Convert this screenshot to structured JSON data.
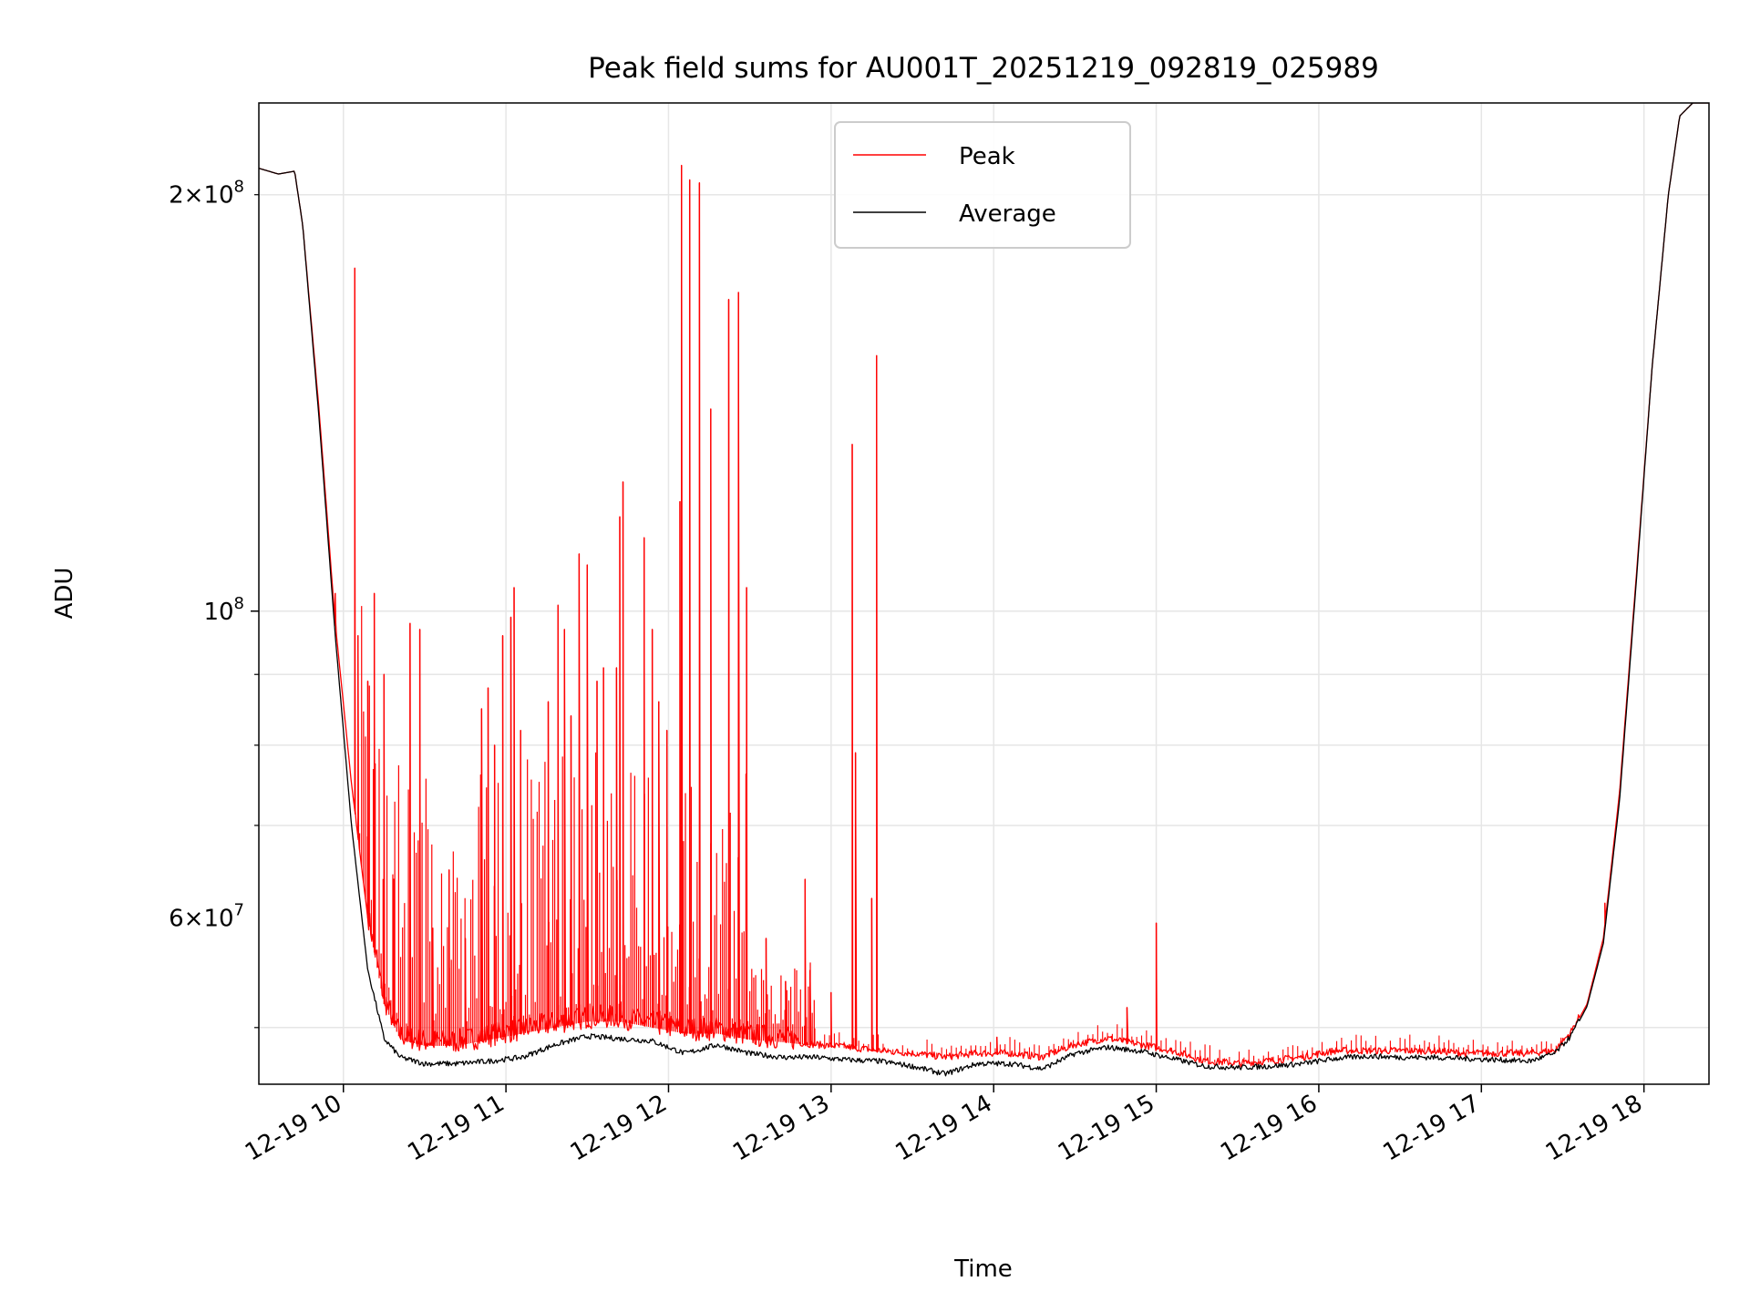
{
  "chart_data": {
    "type": "line",
    "title": "Peak field sums for AU001T_20251219_092819_025989",
    "xlabel": "Time",
    "ylabel": "ADU",
    "yscale": "log",
    "xlim_hours": [
      9.48,
      18.4
    ],
    "ylim": [
      45500000,
      233000000
    ],
    "grid": true,
    "legend_position": "upper-center",
    "x_ticks": [
      {
        "hour": 10,
        "label": "12-19 10"
      },
      {
        "hour": 11,
        "label": "12-19 11"
      },
      {
        "hour": 12,
        "label": "12-19 12"
      },
      {
        "hour": 13,
        "label": "12-19 13"
      },
      {
        "hour": 14,
        "label": "12-19 14"
      },
      {
        "hour": 15,
        "label": "12-19 15"
      },
      {
        "hour": 16,
        "label": "12-19 16"
      },
      {
        "hour": 17,
        "label": "12-19 17"
      },
      {
        "hour": 18,
        "label": "12-19 18"
      }
    ],
    "y_major_ticks": [
      {
        "value": 100000000,
        "base": "10",
        "exp": "8"
      }
    ],
    "y_labeled_minor_ticks": [
      {
        "value": 200000000,
        "mant": "2",
        "base": "10",
        "exp": "8"
      },
      {
        "value": 60000000,
        "mant": "6",
        "base": "10",
        "exp": "7"
      }
    ],
    "y_minor_ticks": [
      50000000,
      70000000,
      80000000,
      90000000,
      200000000
    ],
    "series": [
      {
        "name": "Peak",
        "color": "#ff0000",
        "baseline": {
          "hours": [
            9.48,
            9.6,
            9.7,
            9.75,
            9.85,
            9.95,
            10.05,
            10.15,
            10.25,
            10.35,
            10.5,
            10.7,
            10.9,
            11.1,
            11.3,
            11.5,
            11.7,
            11.9,
            12.1,
            12.3,
            12.5,
            12.7,
            12.9,
            13.1,
            13.3,
            13.5,
            13.7,
            13.9,
            14.1,
            14.3,
            14.5,
            14.7,
            14.9,
            15.1,
            15.3,
            15.5,
            15.7,
            15.9,
            16.1,
            16.3,
            16.5,
            16.7,
            16.9,
            17.1,
            17.3,
            17.45,
            17.55,
            17.65,
            17.75,
            17.85,
            17.95,
            18.05,
            18.15,
            18.22,
            18.3,
            18.4
          ],
          "values": [
            209000000,
            207000000,
            208000000,
            190000000,
            140000000,
            98000000,
            75000000,
            60000000,
            52000000,
            49000000,
            48500000,
            48500000,
            49000000,
            49500000,
            50000000,
            50500000,
            50500000,
            50000000,
            49500000,
            49500000,
            49000000,
            48800000,
            48500000,
            48300000,
            48000000,
            47800000,
            47500000,
            47800000,
            47800000,
            47500000,
            48500000,
            49000000,
            48500000,
            48000000,
            47200000,
            47000000,
            47200000,
            47500000,
            48000000,
            48000000,
            48000000,
            48000000,
            47800000,
            47800000,
            47800000,
            48000000,
            49500000,
            52000000,
            58000000,
            74000000,
            105000000,
            150000000,
            200000000,
            228000000,
            233000000,
            233000000
          ]
        },
        "spikes": [
          {
            "hour": 9.95,
            "value": 103000000
          },
          {
            "hour": 10.07,
            "value": 177000000
          },
          {
            "hour": 10.09,
            "value": 96000000
          },
          {
            "hour": 10.15,
            "value": 89000000
          },
          {
            "hour": 10.19,
            "value": 103000000
          },
          {
            "hour": 10.25,
            "value": 90000000
          },
          {
            "hour": 10.31,
            "value": 64000000
          },
          {
            "hour": 10.41,
            "value": 98000000
          },
          {
            "hour": 10.47,
            "value": 97000000
          },
          {
            "hour": 10.55,
            "value": 59000000
          },
          {
            "hour": 10.65,
            "value": 65000000
          },
          {
            "hour": 10.75,
            "value": 58000000
          },
          {
            "hour": 10.85,
            "value": 85000000
          },
          {
            "hour": 10.89,
            "value": 88000000
          },
          {
            "hour": 10.93,
            "value": 80000000
          },
          {
            "hour": 10.98,
            "value": 96000000
          },
          {
            "hour": 11.03,
            "value": 99000000
          },
          {
            "hour": 11.05,
            "value": 104000000
          },
          {
            "hour": 11.09,
            "value": 82000000
          },
          {
            "hour": 11.26,
            "value": 86000000
          },
          {
            "hour": 11.32,
            "value": 101000000
          },
          {
            "hour": 11.36,
            "value": 97000000
          },
          {
            "hour": 11.4,
            "value": 84000000
          },
          {
            "hour": 11.45,
            "value": 110000000
          },
          {
            "hour": 11.5,
            "value": 108000000
          },
          {
            "hour": 11.56,
            "value": 89000000
          },
          {
            "hour": 11.6,
            "value": 91000000
          },
          {
            "hour": 11.68,
            "value": 91000000
          },
          {
            "hour": 11.7,
            "value": 117000000
          },
          {
            "hour": 11.72,
            "value": 124000000
          },
          {
            "hour": 11.85,
            "value": 113000000
          },
          {
            "hour": 11.9,
            "value": 97000000
          },
          {
            "hour": 11.94,
            "value": 86000000
          },
          {
            "hour": 11.99,
            "value": 82000000
          },
          {
            "hour": 12.07,
            "value": 120000000
          },
          {
            "hour": 12.08,
            "value": 210000000
          },
          {
            "hour": 12.13,
            "value": 205000000
          },
          {
            "hour": 12.19,
            "value": 204000000
          },
          {
            "hour": 12.26,
            "value": 140000000
          },
          {
            "hour": 12.37,
            "value": 168000000
          },
          {
            "hour": 12.43,
            "value": 170000000
          },
          {
            "hour": 12.48,
            "value": 104000000
          },
          {
            "hour": 12.6,
            "value": 58000000
          },
          {
            "hour": 12.72,
            "value": 54000000
          },
          {
            "hour": 12.84,
            "value": 64000000
          },
          {
            "hour": 12.87,
            "value": 55000000
          },
          {
            "hour": 13.0,
            "value": 53000000
          },
          {
            "hour": 13.13,
            "value": 132000000
          },
          {
            "hour": 13.15,
            "value": 79000000
          },
          {
            "hour": 13.25,
            "value": 62000000
          },
          {
            "hour": 13.28,
            "value": 153000000
          },
          {
            "hour": 14.02,
            "value": 49200000
          },
          {
            "hour": 14.82,
            "value": 51700000
          },
          {
            "hour": 15.0,
            "value": 59500000
          },
          {
            "hour": 17.76,
            "value": 61500000
          }
        ]
      },
      {
        "name": "Average",
        "color": "#000000",
        "baseline": {
          "hours": [
            9.48,
            9.6,
            9.7,
            9.75,
            9.85,
            9.95,
            10.05,
            10.15,
            10.25,
            10.35,
            10.5,
            10.7,
            10.9,
            11.1,
            11.3,
            11.5,
            11.7,
            11.9,
            12.1,
            12.3,
            12.5,
            12.7,
            12.9,
            13.1,
            13.3,
            13.5,
            13.7,
            13.9,
            14.1,
            14.3,
            14.5,
            14.7,
            14.9,
            15.1,
            15.3,
            15.5,
            15.7,
            15.9,
            16.1,
            16.3,
            16.5,
            16.7,
            16.9,
            17.1,
            17.3,
            17.45,
            17.55,
            17.65,
            17.75,
            17.85,
            17.95,
            18.05,
            18.15,
            18.22,
            18.3,
            18.4
          ],
          "values": [
            209000000,
            207000000,
            208000000,
            190000000,
            138000000,
            96000000,
            70000000,
            55000000,
            49000000,
            47500000,
            47000000,
            47000000,
            47200000,
            47500000,
            48500000,
            49200000,
            49000000,
            48800000,
            47800000,
            48500000,
            47800000,
            47500000,
            47500000,
            47300000,
            47200000,
            46800000,
            46200000,
            47000000,
            47000000,
            46600000,
            47800000,
            48300000,
            48000000,
            47400000,
            46800000,
            46700000,
            46800000,
            47000000,
            47400000,
            47600000,
            47500000,
            47500000,
            47400000,
            47300000,
            47200000,
            47800000,
            49200000,
            51800000,
            57500000,
            73000000,
            104000000,
            150000000,
            200000000,
            228000000,
            233000000,
            233000000
          ]
        }
      }
    ]
  }
}
